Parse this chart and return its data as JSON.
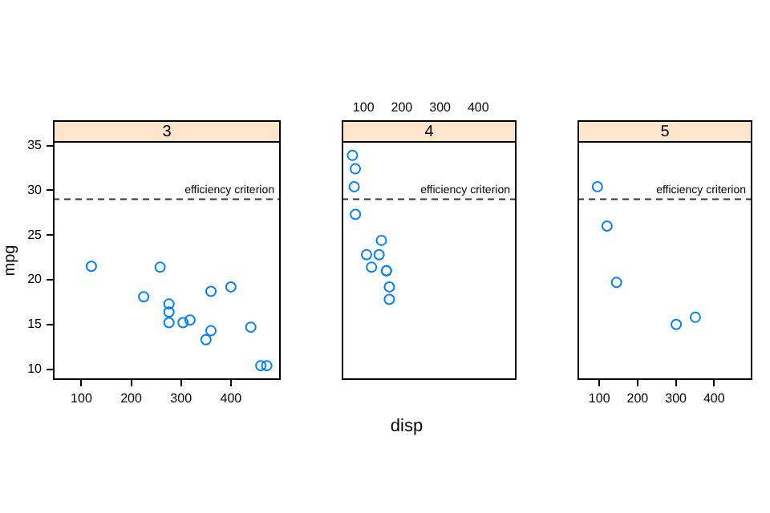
{
  "chart_data": [
    {
      "type": "scatter",
      "title": "3",
      "ylabel": "mpg",
      "xlim": [
        43,
        500
      ],
      "ylim": [
        8.8,
        35.5
      ],
      "xticks": [
        100,
        200,
        300,
        400
      ],
      "yticks": [
        10,
        15,
        20,
        25,
        30,
        35
      ],
      "marker": "circle",
      "grid": false,
      "legend": false,
      "series": [
        {
          "color": "#0080ff",
          "x": [
            258,
            360,
            225,
            360,
            275.8,
            275.8,
            275.8,
            472,
            460,
            440,
            120.1,
            318,
            304,
            350,
            400
          ],
          "values": [
            21.4,
            18.7,
            18.1,
            14.3,
            16.4,
            17.3,
            15.2,
            10.4,
            10.4,
            14.7,
            21.5,
            15.5,
            15.2,
            13.3,
            19.2
          ]
        }
      ],
      "ref_lines": [
        {
          "axis": "y",
          "value": 29,
          "label": "efficiency criterion",
          "line_style": "dashed"
        }
      ]
    },
    {
      "type": "scatter",
      "title": "4",
      "xlabel": "disp",
      "xlim": [
        43,
        500
      ],
      "ylim": [
        8.8,
        35.5
      ],
      "xticks": [
        100,
        200,
        300,
        400
      ],
      "tick_labels": "x",
      "marker": "circle",
      "grid": false,
      "legend": false,
      "series": [
        {
          "color": "#0080ff",
          "x": [
            160,
            160,
            108,
            146.7,
            140.8,
            167.6,
            167.6,
            78.7,
            75.7,
            71.1,
            79,
            121
          ],
          "values": [
            21,
            21,
            22.8,
            24.4,
            22.8,
            19.2,
            17.8,
            32.4,
            30.4,
            33.9,
            27.3,
            21.4
          ]
        }
      ],
      "ref_lines": [
        {
          "axis": "y",
          "value": 29,
          "label": "efficiency criterion",
          "line_style": "dashed"
        }
      ]
    },
    {
      "type": "scatter",
      "title": "5",
      "xlim": [
        43,
        500
      ],
      "ylim": [
        8.8,
        35.5
      ],
      "xticks": [
        100,
        200,
        300,
        400
      ],
      "tick_labels": "x",
      "marker": "circle",
      "grid": false,
      "legend": false,
      "series": [
        {
          "color": "#0080ff",
          "x": [
            120.3,
            95.1,
            351,
            145,
            301
          ],
          "values": [
            26,
            30.4,
            15.8,
            19.7,
            15
          ]
        }
      ],
      "ref_lines": [
        {
          "axis": "y",
          "value": 29,
          "label": "efficiency criterion",
          "line_style": "dashed"
        }
      ]
    }
  ]
}
